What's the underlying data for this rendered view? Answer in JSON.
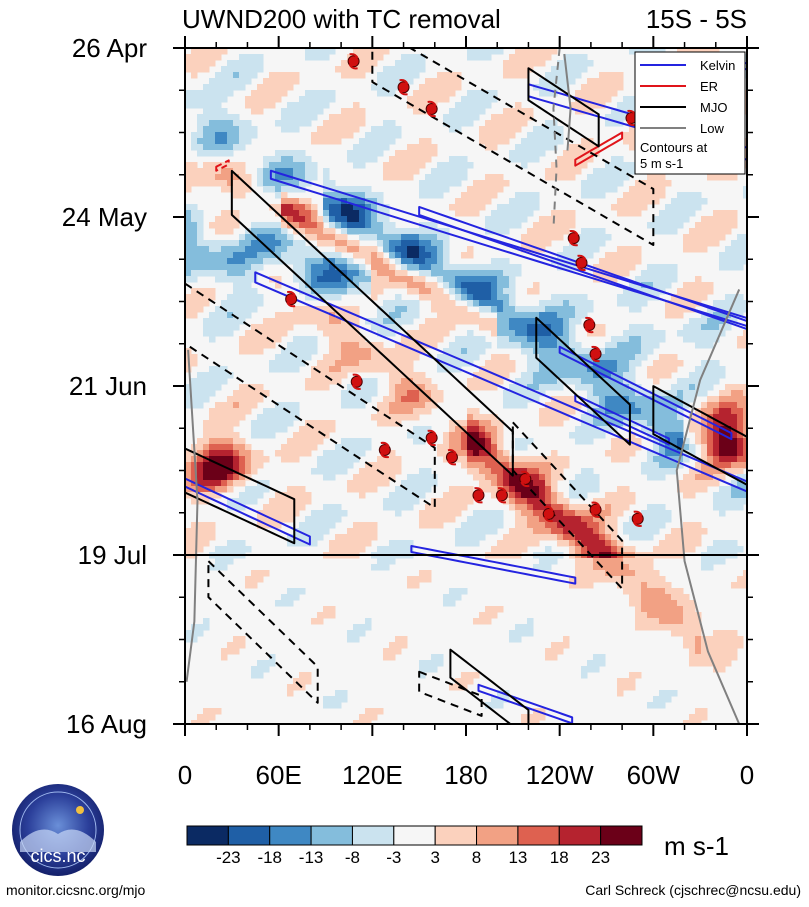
{
  "chart_data": {
    "type": "heatmap",
    "title": "UWND200 with TC removal",
    "latitude_band": "15S - 5S",
    "x_ticks": [
      "0",
      "60E",
      "120E",
      "180",
      "120W",
      "60W",
      "0"
    ],
    "x_values": [
      0,
      60,
      120,
      180,
      240,
      300,
      360
    ],
    "xlim": [
      0,
      360
    ],
    "y_ticks": [
      "26 Apr",
      "24 May",
      "21 Jun",
      "19 Jul",
      "16 Aug"
    ],
    "y_days": [
      0,
      28,
      56,
      84,
      112
    ],
    "ylim": [
      0,
      112
    ],
    "colorbar": {
      "unit": "m s-1",
      "labels": [
        "-23",
        "-18",
        "-13",
        "-8",
        "-3",
        "3",
        "8",
        "13",
        "18",
        "23"
      ],
      "colors": [
        "#0b2a63",
        "#1f5fa6",
        "#3f88c3",
        "#84bddc",
        "#cbe3ef",
        "#f6f6f6",
        "#fbd1bd",
        "#f2a184",
        "#de6150",
        "#b5232f",
        "#6b0018"
      ]
    },
    "legend": {
      "position": "top-right",
      "entries": [
        {
          "name": "Kelvin",
          "color": "#2424e0"
        },
        {
          "name": "ER",
          "color": "#e0141a"
        },
        {
          "name": "MJO",
          "color": "#000000"
        },
        {
          "name": "Low",
          "color": "#808080"
        }
      ],
      "note_lines": [
        "Contours at",
        "5 m s-1"
      ]
    },
    "forecast_start_day": 84,
    "tc_markers": [
      {
        "lon": 108,
        "day": 2.2
      },
      {
        "lon": 140,
        "day": 6.5
      },
      {
        "lon": 158,
        "day": 10.1
      },
      {
        "lon": 286,
        "day": 11.6
      },
      {
        "lon": 249,
        "day": 31.5
      },
      {
        "lon": 254,
        "day": 35.6
      },
      {
        "lon": 68,
        "day": 41.6
      },
      {
        "lon": 259,
        "day": 45.9
      },
      {
        "lon": 263,
        "day": 50.7
      },
      {
        "lon": 110,
        "day": 55.3
      },
      {
        "lon": 158,
        "day": 64.6
      },
      {
        "lon": 128,
        "day": 66.6
      },
      {
        "lon": 171,
        "day": 67.8
      },
      {
        "lon": 218,
        "day": 71.4
      },
      {
        "lon": 188,
        "day": 74.1
      },
      {
        "lon": 203,
        "day": 74.1
      },
      {
        "lon": 263,
        "day": 76.5
      },
      {
        "lon": 233,
        "day": 77.2
      },
      {
        "lon": 290,
        "day": 78.0
      }
    ]
  },
  "footer": {
    "left": "monitor.cicsnc.org/mjo",
    "right": "Carl Schreck (cjschrec@ncsu.edu)",
    "logo_text": "cics.nc",
    "logo_ring": "Cooperative Institute for Climate and Satellites"
  }
}
